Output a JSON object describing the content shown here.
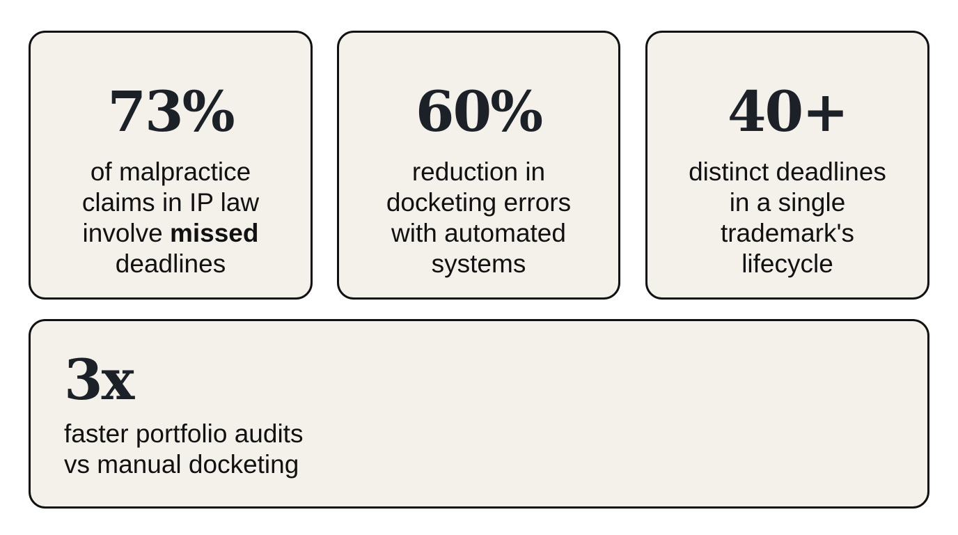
{
  "stats": [
    {
      "value": "73%",
      "lines": [
        "of malpractice",
        "claims in IP law"
      ],
      "line3_pre": "involve ",
      "line3_bold": "missed",
      "line4": "deadlines"
    },
    {
      "value": "60%",
      "lines": [
        "reduction in",
        "docketing errors",
        "with automated",
        "systems"
      ]
    },
    {
      "value": "40+",
      "lines": [
        "distinct deadlines",
        "in a single",
        "trademark's",
        "lifecycle"
      ]
    },
    {
      "value": "3x",
      "lines": [
        "faster portfolio audits",
        "vs manual docketing"
      ]
    }
  ],
  "colors": {
    "card_background": "#f3f1ea",
    "border": "#111111",
    "number": "#1c2128"
  }
}
